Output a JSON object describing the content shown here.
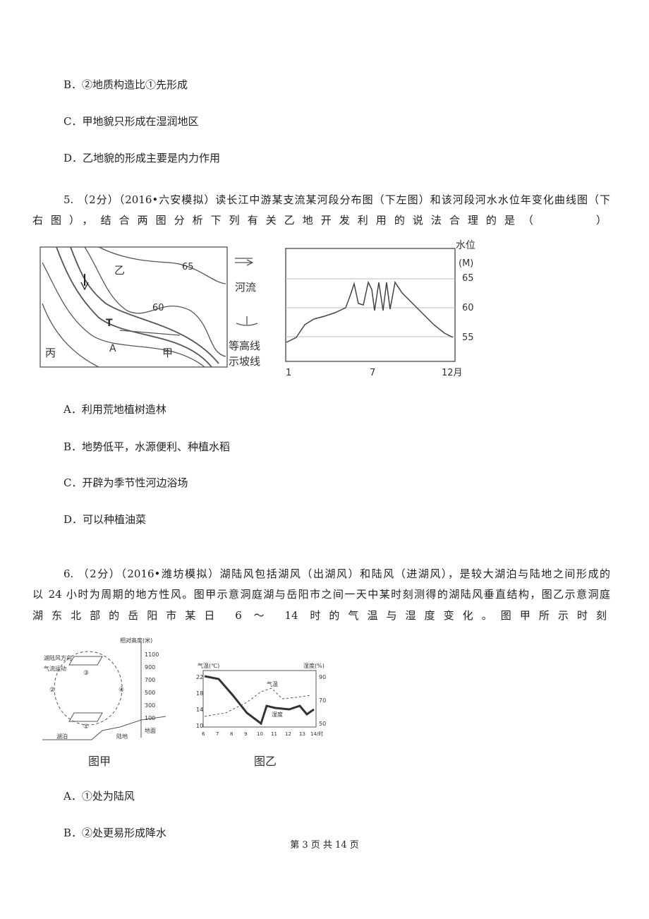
{
  "prev_options": [
    "B．②地质构造比①先形成",
    "C．甲地貌只形成在湿润地区",
    "D．乙地貌的形成主要是内力作用"
  ],
  "q5": {
    "lines": [
      "5. （2分）（2016•六安模拟）读长江中游某支流某河段分布图（下左图）和该河段河水水位年变化曲线图（下",
      "右图），结合两图分析下列有关乙地开发利用的说法合理的是（　　　）"
    ],
    "map": {
      "labels": [
        "乙",
        "65",
        "60",
        "T",
        "A",
        "丙",
        "甲"
      ],
      "legend": [
        "河流",
        "等高线",
        "示坡线"
      ]
    },
    "chart": {
      "y_title": "水位",
      "y_unit": "(M)",
      "yticks": [
        "65",
        "60",
        "55"
      ],
      "xticks": [
        "1",
        "7",
        "12月"
      ]
    },
    "options": [
      "A．利用荒地植树造林",
      "B．地势低平，水源便利、种植水稻",
      "C．开辟为季节性河边浴场",
      "D．可以种植油菜"
    ]
  },
  "q6": {
    "lines": [
      "6. （2分）（2016•潍坊模拟）湖陆风包括湖风（出湖风）和陆风（进湖风），是较大湖泊与陆地之间形成的",
      "以 24 小时为周期的地方性风。图甲示意洞庭湖与岳阳市之间一天中某时刻测得的湖陆风垂直结构，图乙示意洞庭",
      "湖东北部的岳阳市某日 6 ～ 14 时的气温与湿度变化。图甲所示时刻"
    ],
    "fig_a": {
      "legend": [
        "湖陆风方向",
        "气流运动"
      ],
      "y_title": "相对高度(米)",
      "yticks": [
        "1100",
        "900",
        "700",
        "500",
        "300",
        "100",
        "地面"
      ],
      "circle_labels": [
        "③",
        "①",
        "②",
        "④"
      ],
      "ground": [
        "湖泊",
        "陆地"
      ],
      "caption": "图甲"
    },
    "fig_b": {
      "left_title": "气温(℃)",
      "right_title": "湿度(%)",
      "left_ticks": [
        "22",
        "18",
        "14",
        "10"
      ],
      "right_ticks": [
        "90",
        "70",
        "50"
      ],
      "xticks": [
        "6",
        "7",
        "8",
        "9",
        "10",
        "11",
        "12",
        "13",
        "14/时"
      ],
      "series_labels": [
        "气温",
        "湿度"
      ],
      "caption": "图乙"
    },
    "options": [
      "A．①处为陆风",
      "B．②处更易形成降水"
    ]
  },
  "footer": "第 3 页 共 14 页"
}
